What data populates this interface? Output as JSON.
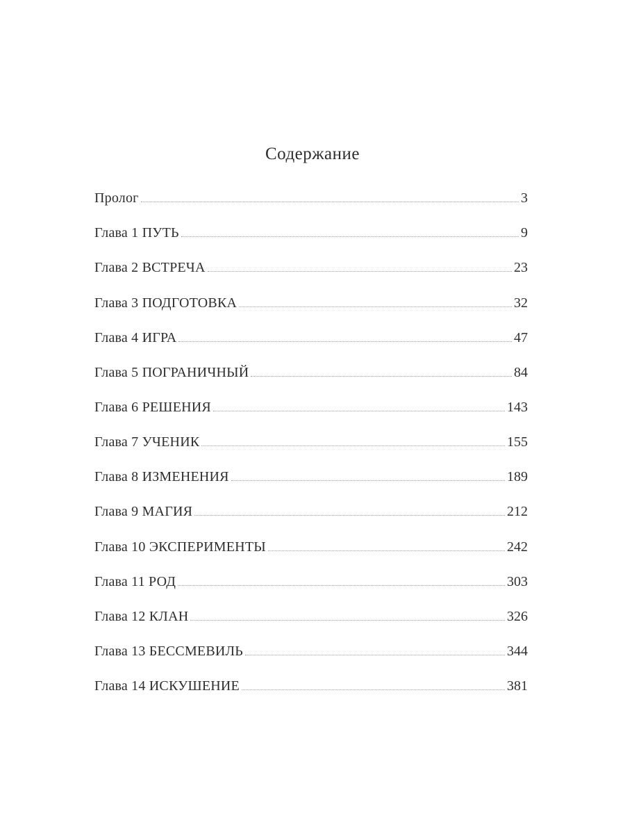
{
  "page": {
    "title": "Содержание",
    "colors": {
      "text": "#2e2e2e",
      "leader_dots": "#9a9a9a",
      "background": "#ffffff"
    },
    "toc": [
      {
        "label": "Пролог",
        "page": "3"
      },
      {
        "label": "Глава 1 ПУТЬ",
        "page": "9"
      },
      {
        "label": "Глава 2 ВСТРЕЧА",
        "page": "23"
      },
      {
        "label": "Глава 3 ПОДГОТОВКА",
        "page": "32"
      },
      {
        "label": "Глава 4 ИГРА",
        "page": "47"
      },
      {
        "label": "Глава 5 ПОГРАНИЧНЫЙ",
        "page": "84"
      },
      {
        "label": "Глава 6 РЕШЕНИЯ",
        "page": "143"
      },
      {
        "label": "Глава 7 УЧЕНИК",
        "page": "155"
      },
      {
        "label": "Глава 8 ИЗМЕНЕНИЯ",
        "page": "189"
      },
      {
        "label": "Глава 9 МАГИЯ",
        "page": "212"
      },
      {
        "label": "Глава 10 ЭКСПЕРИМЕНТЫ",
        "page": "242"
      },
      {
        "label": "Глава 11 РОД",
        "page": "303"
      },
      {
        "label": "Глава 12 КЛАН",
        "page": "326"
      },
      {
        "label": "Глава 13 БЕССМЕВИЛЬ",
        "page": "344"
      },
      {
        "label": "Глава 14 ИСКУШЕНИЕ",
        "page": "381"
      }
    ]
  }
}
